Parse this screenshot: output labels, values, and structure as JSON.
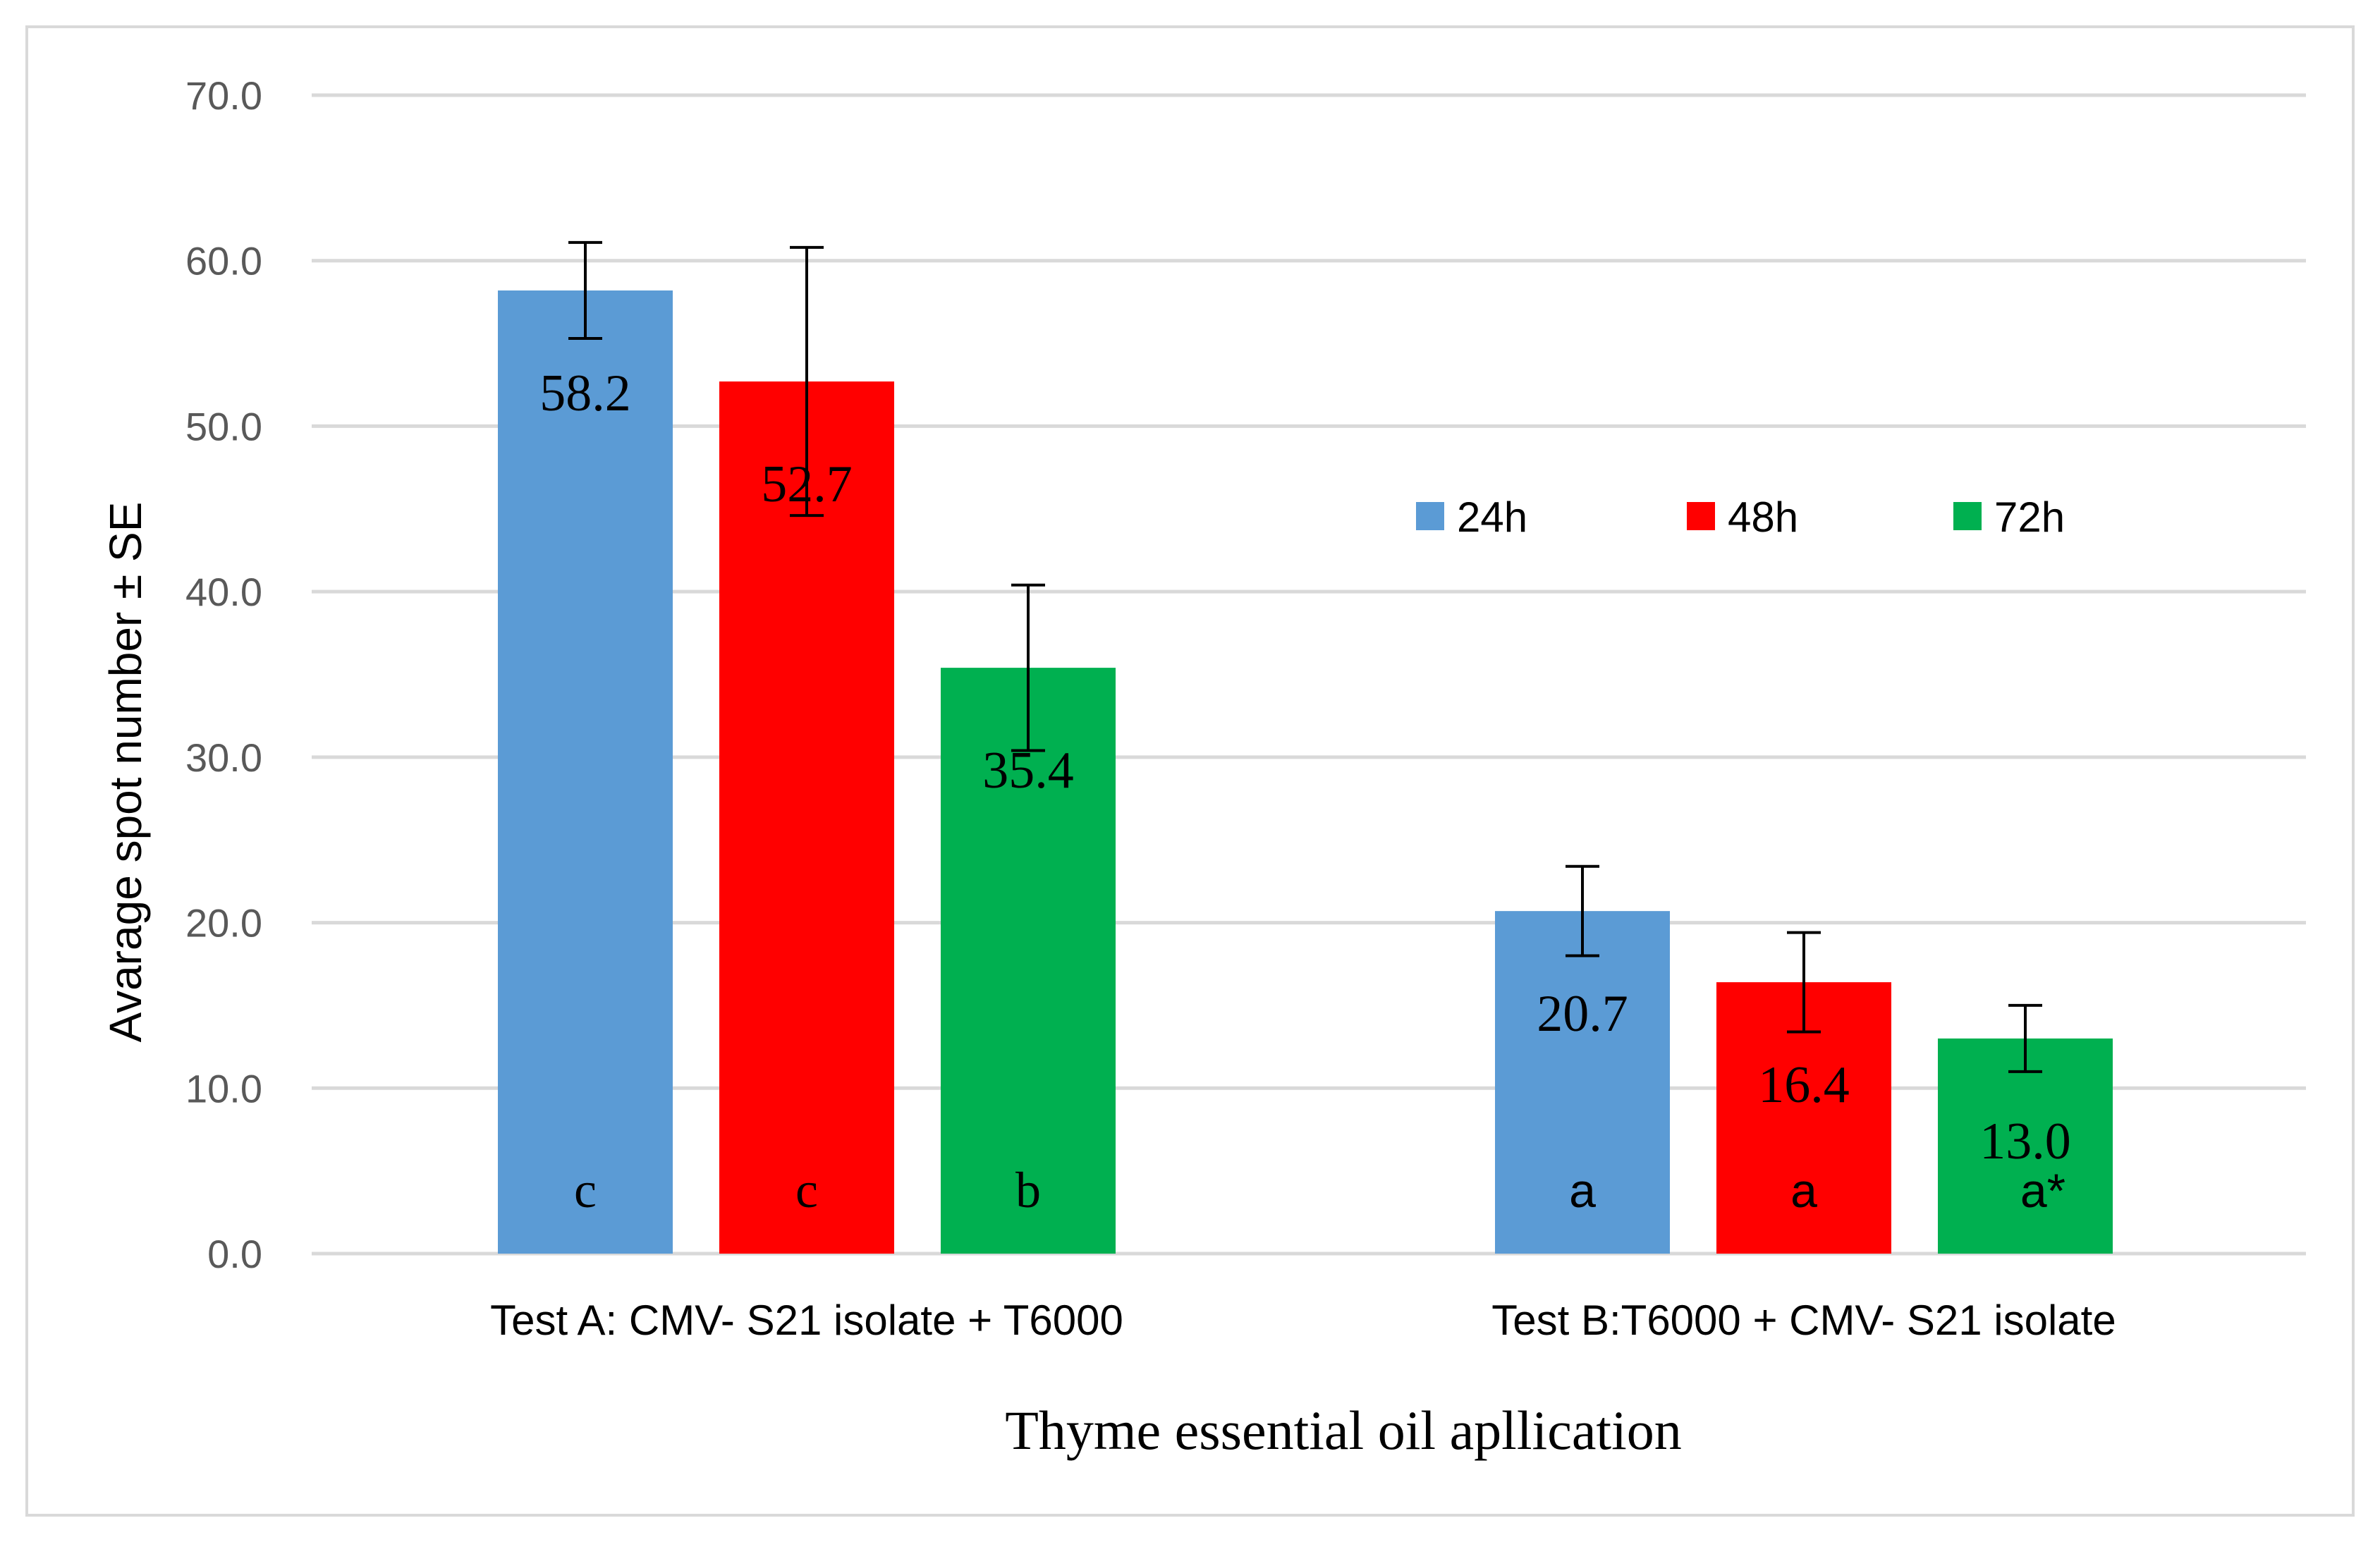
{
  "chart_data": {
    "type": "bar",
    "title": "",
    "xlabel": "Thyme essential oil apllication",
    "ylabel": "Avarage spot number ± SE",
    "ylim": [
      0,
      70
    ],
    "yticks": [
      "0.0",
      "10.0",
      "20.0",
      "30.0",
      "40.0",
      "50.0",
      "60.0",
      "70.0"
    ],
    "grid": true,
    "legend_position": "right-middle",
    "categories": [
      "Test A: CMV- S21 isolate + T6000",
      "Test B:T6000 + CMV- S21 isolate"
    ],
    "series": [
      {
        "name": "24h",
        "color": "#5B9BD5",
        "values": [
          58.2,
          20.7
        ],
        "errors": [
          2.9,
          2.7
        ],
        "labels": [
          "58.2",
          "20.7"
        ],
        "letters": [
          "c",
          "a"
        ]
      },
      {
        "name": "48h",
        "color": "#FF0000",
        "values": [
          52.7,
          16.4
        ],
        "errors": [
          8.1,
          3.0
        ],
        "labels": [
          "52.7",
          "16.4"
        ],
        "letters": [
          "c",
          "a"
        ]
      },
      {
        "name": "72h",
        "color": "#00B050",
        "values": [
          35.4,
          13.0
        ],
        "errors": [
          5.0,
          2.0
        ],
        "labels": [
          "35.4",
          "13.0"
        ],
        "letters": [
          "b",
          "a*"
        ]
      }
    ]
  }
}
